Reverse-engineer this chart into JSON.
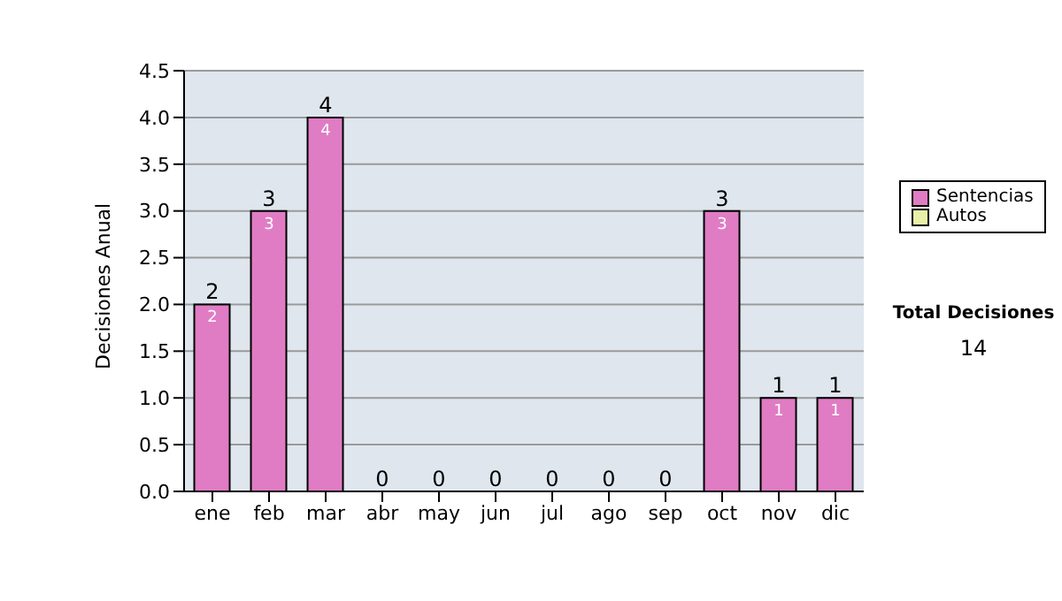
{
  "chart_data": {
    "type": "bar",
    "ylabel": "Decisiones Anual",
    "categories": [
      "ene",
      "feb",
      "mar",
      "abr",
      "may",
      "jun",
      "jul",
      "ago",
      "sep",
      "oct",
      "nov",
      "dic"
    ],
    "series": [
      {
        "name": "Sentencias",
        "color": "#e07cc4",
        "values": [
          2,
          3,
          4,
          0,
          0,
          0,
          0,
          0,
          0,
          3,
          1,
          1
        ],
        "value_labels": [
          "2",
          "3",
          "4",
          null,
          null,
          null,
          null,
          null,
          null,
          "3",
          "1",
          "1"
        ]
      },
      {
        "name": "Autos",
        "color": "#e8f0a8",
        "values": [
          null,
          null,
          null,
          null,
          null,
          null,
          null,
          null,
          null,
          null,
          null,
          null
        ]
      }
    ],
    "stacked": true,
    "totals": [
      "2",
      "3",
      "4",
      "0",
      "0",
      "0",
      "0",
      "0",
      "0",
      "3",
      "1",
      "1"
    ],
    "ylim": [
      0,
      4.5
    ],
    "yticks": [
      {
        "value": 0,
        "label": "0.0"
      },
      {
        "value": 0.5,
        "label": "0.5"
      },
      {
        "value": 1,
        "label": "1.0"
      },
      {
        "value": 1.5,
        "label": "1.5"
      },
      {
        "value": 2,
        "label": "2.0"
      },
      {
        "value": 2.5,
        "label": "2.5"
      },
      {
        "value": 3,
        "label": "3.0"
      },
      {
        "value": 3.5,
        "label": "3.5"
      },
      {
        "value": 4,
        "label": "4.0"
      },
      {
        "value": 4.5,
        "label": "4.5"
      }
    ],
    "grid": "y",
    "legend": "right",
    "annotations": [
      "Total Decisiones",
      "14"
    ]
  }
}
